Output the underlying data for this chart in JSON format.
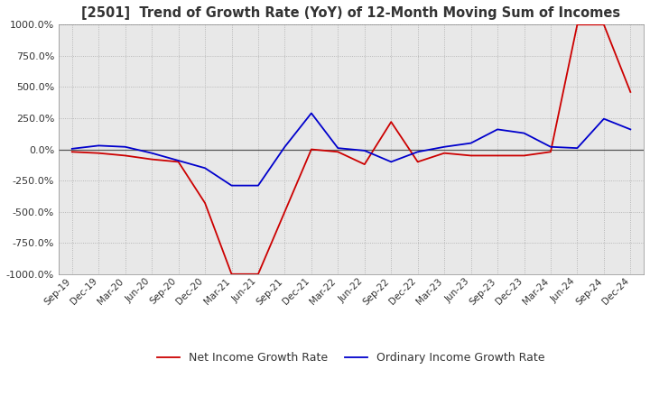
{
  "title": "[2501]  Trend of Growth Rate (YoY) of 12-Month Moving Sum of Incomes",
  "ylim": [
    -1000,
    1000
  ],
  "yticks": [
    -1000,
    -750,
    -500,
    -250,
    0,
    250,
    500,
    750,
    1000
  ],
  "plot_bg": "#e8e8e8",
  "fig_bg": "#ffffff",
  "grid_color": "#aaaaaa",
  "ordinary_color": "#0000cc",
  "net_color": "#cc0000",
  "legend_ordinary": "Ordinary Income Growth Rate",
  "legend_net": "Net Income Growth Rate",
  "x_labels": [
    "Sep-19",
    "Dec-19",
    "Mar-20",
    "Jun-20",
    "Sep-20",
    "Dec-20",
    "Mar-21",
    "Jun-21",
    "Sep-21",
    "Dec-21",
    "Mar-22",
    "Jun-22",
    "Sep-22",
    "Dec-22",
    "Mar-23",
    "Jun-23",
    "Sep-23",
    "Dec-23",
    "Mar-24",
    "Jun-24",
    "Sep-24",
    "Dec-24"
  ],
  "ordinary_income": [
    5,
    30,
    20,
    -30,
    -90,
    -150,
    -290,
    -290,
    20,
    290,
    10,
    -10,
    -100,
    -20,
    20,
    50,
    160,
    130,
    20,
    10,
    245,
    160
  ],
  "net_income": [
    -20,
    -30,
    -50,
    -80,
    -100,
    -430,
    -1000,
    -1000,
    -500,
    0,
    -20,
    -120,
    220,
    -100,
    -30,
    -50,
    -50,
    -50,
    -20,
    1000,
    1000,
    460
  ]
}
